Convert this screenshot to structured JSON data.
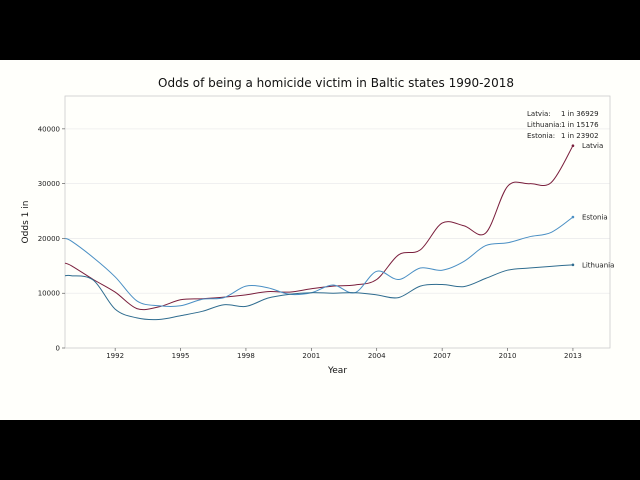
{
  "chart_data": {
    "type": "line",
    "title": "Odds of being a homicide victim in Baltic states 1990-2018",
    "xlabel": "Year",
    "ylabel": "Odds 1 in",
    "xlim": [
      1989.7,
      2014.7
    ],
    "ylim": [
      0,
      46000
    ],
    "xticks": [
      1992,
      1995,
      1998,
      2001,
      2004,
      2007,
      2010,
      2013
    ],
    "yticks": [
      0,
      10000,
      20000,
      30000,
      40000
    ],
    "grid": "horizontal",
    "annotations": [
      {
        "name": "Latvia:",
        "value": "1 in 36929"
      },
      {
        "name": "Lithuania:",
        "value": "1 in 15176"
      },
      {
        "name": "Estonia:",
        "value": "1 in 23902"
      }
    ],
    "series": [
      {
        "name": "Latvia",
        "color": "#7a1f3d",
        "x": [
          1989.7,
          1990,
          1991,
          1992,
          1993,
          1994,
          1995,
          1996,
          1997,
          1998,
          1999,
          2000,
          2001,
          2002,
          2003,
          2004,
          2005,
          2006,
          2007,
          2008,
          2009,
          2010,
          2011,
          2012,
          2013
        ],
        "y": [
          15500,
          15000,
          12500,
          10200,
          7200,
          7500,
          8800,
          9000,
          9300,
          9700,
          10300,
          10200,
          10800,
          11300,
          11500,
          12500,
          17000,
          17900,
          22800,
          22300,
          21000,
          29500,
          30000,
          30200,
          36929
        ]
      },
      {
        "name": "Estonia",
        "color": "#4a8fc4",
        "x": [
          1989.7,
          1990,
          1991,
          1992,
          1993,
          1994,
          1995,
          1996,
          1997,
          1998,
          1999,
          2000,
          2001,
          2002,
          2003,
          2004,
          2005,
          2006,
          2007,
          2008,
          2009,
          2010,
          2011,
          2012,
          2013
        ],
        "y": [
          20000,
          19500,
          16500,
          13000,
          8600,
          7700,
          7700,
          8900,
          9200,
          11300,
          11000,
          9800,
          10100,
          11500,
          10100,
          14000,
          12500,
          14600,
          14200,
          15800,
          18700,
          19200,
          20300,
          21100,
          23902
        ]
      },
      {
        "name": "Lithuania",
        "color": "#2f6c8f",
        "x": [
          1989.7,
          1990,
          1991,
          1992,
          1993,
          1994,
          1995,
          1996,
          1997,
          1998,
          1999,
          2000,
          2001,
          2002,
          2003,
          2004,
          2005,
          2006,
          2007,
          2008,
          2009,
          2010,
          2011,
          2012,
          2013
        ],
        "y": [
          13200,
          13200,
          12400,
          7100,
          5500,
          5200,
          5900,
          6700,
          7900,
          7600,
          9100,
          9800,
          10100,
          10000,
          10100,
          9700,
          9200,
          11300,
          11600,
          11200,
          12700,
          14200,
          14600,
          14900,
          15176
        ]
      }
    ]
  }
}
